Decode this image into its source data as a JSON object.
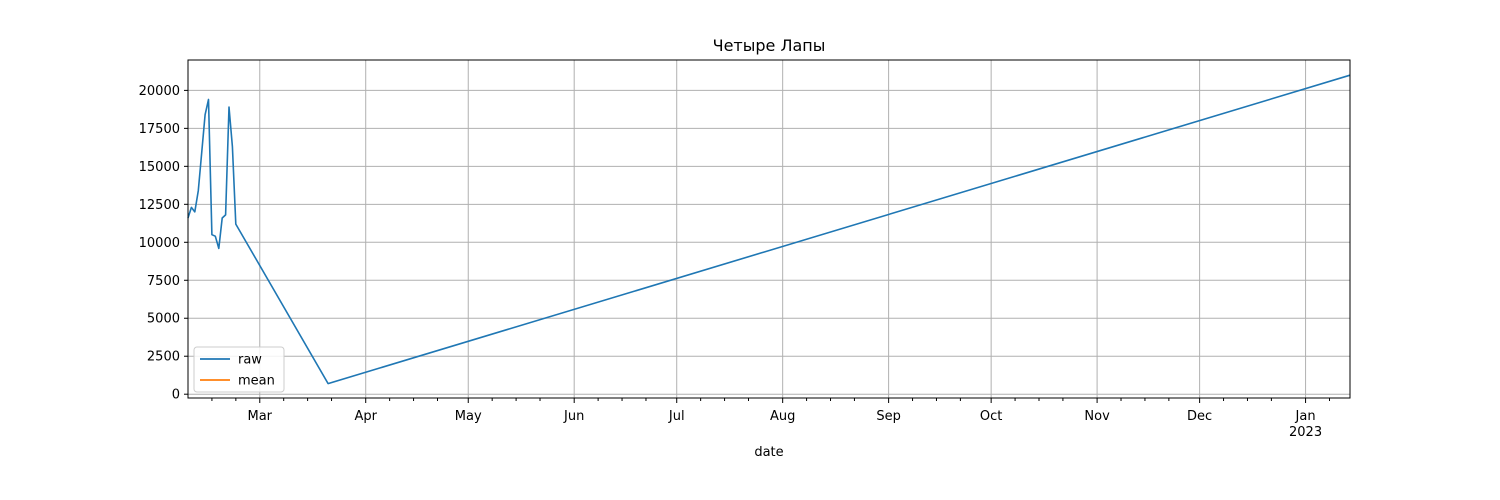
{
  "chart_data": {
    "type": "line",
    "title": "Четыре Лапы",
    "xlabel": "date",
    "ylabel": "",
    "x_type": "date",
    "xlim": [
      "2022-02-08",
      "2023-01-14"
    ],
    "ylim": [
      -250,
      22000
    ],
    "yticks": [
      0,
      2500,
      5000,
      7500,
      10000,
      12500,
      15000,
      17500,
      20000
    ],
    "xticks_major": [
      {
        "date": "2022-03-01",
        "label": "Mar"
      },
      {
        "date": "2022-04-01",
        "label": "Apr"
      },
      {
        "date": "2022-05-01",
        "label": "May"
      },
      {
        "date": "2022-06-01",
        "label": "Jun"
      },
      {
        "date": "2022-07-01",
        "label": "Jul"
      },
      {
        "date": "2022-08-01",
        "label": "Aug"
      },
      {
        "date": "2022-09-01",
        "label": "Sep"
      },
      {
        "date": "2022-10-01",
        "label": "Oct"
      },
      {
        "date": "2022-11-01",
        "label": "Nov"
      },
      {
        "date": "2022-12-01",
        "label": "Dec"
      },
      {
        "date": "2023-01-01",
        "label": "Jan",
        "sublabel": "2023"
      }
    ],
    "grid": true,
    "legend_position": "lower-left",
    "series": [
      {
        "name": "raw",
        "color": "#1f77b4",
        "points": [
          {
            "x": "2022-02-08",
            "y": 11600
          },
          {
            "x": "2022-02-09",
            "y": 12300
          },
          {
            "x": "2022-02-10",
            "y": 12000
          },
          {
            "x": "2022-02-11",
            "y": 13400
          },
          {
            "x": "2022-02-12",
            "y": 15900
          },
          {
            "x": "2022-02-13",
            "y": 18400
          },
          {
            "x": "2022-02-14",
            "y": 19400
          },
          {
            "x": "2022-02-15",
            "y": 10500
          },
          {
            "x": "2022-02-16",
            "y": 10400
          },
          {
            "x": "2022-02-17",
            "y": 9600
          },
          {
            "x": "2022-02-18",
            "y": 11600
          },
          {
            "x": "2022-02-19",
            "y": 11800
          },
          {
            "x": "2022-02-20",
            "y": 18900
          },
          {
            "x": "2022-02-21",
            "y": 16300
          },
          {
            "x": "2022-02-22",
            "y": 11200
          },
          {
            "x": "2022-03-21",
            "y": 700
          },
          {
            "x": "2023-01-14",
            "y": 21000
          }
        ]
      },
      {
        "name": "mean",
        "color": "#ff7f0e",
        "points": []
      }
    ]
  }
}
